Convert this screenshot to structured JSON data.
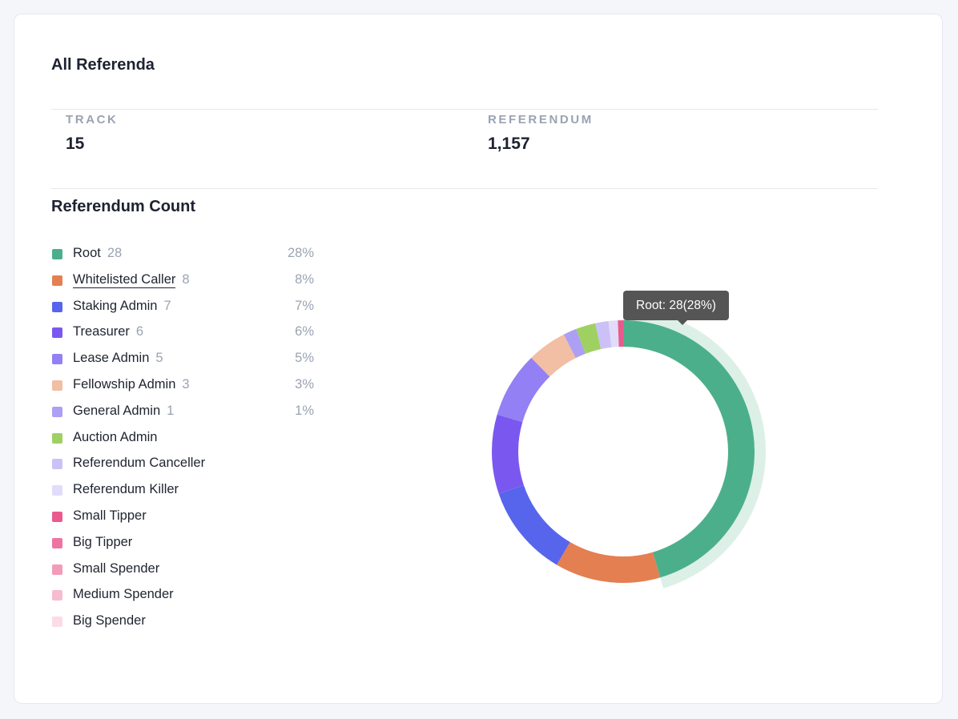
{
  "header": {
    "title": "All Referenda"
  },
  "stats": [
    {
      "label": "TRACK",
      "value": "15"
    },
    {
      "label": "REFERENDUM",
      "value": "1,157"
    }
  ],
  "section": {
    "title": "Referendum Count"
  },
  "legend": [
    {
      "name": "Root",
      "count": "28",
      "pct": "28%",
      "color": "#4caf8c"
    },
    {
      "name": "Whitelisted Caller",
      "count": "8",
      "pct": "8%",
      "color": "#e47f52"
    },
    {
      "name": "Staking Admin",
      "count": "7",
      "pct": "7%",
      "color": "#5765ec"
    },
    {
      "name": "Treasurer",
      "count": "6",
      "pct": "6%",
      "color": "#7a58f0"
    },
    {
      "name": "Lease Admin",
      "count": "5",
      "pct": "5%",
      "color": "#9380f4"
    },
    {
      "name": "Fellowship Admin",
      "count": "3",
      "pct": "3%",
      "color": "#f2bea4"
    },
    {
      "name": "General Admin",
      "count": "1",
      "pct": "1%",
      "color": "#ac9ff4"
    },
    {
      "name": "Auction Admin",
      "count": "",
      "pct": "",
      "color": "#9ed162"
    },
    {
      "name": "Referendum Canceller",
      "count": "",
      "pct": "",
      "color": "#cbc1f7"
    },
    {
      "name": "Referendum Killer",
      "count": "",
      "pct": "",
      "color": "#e1dcfa"
    },
    {
      "name": "Small Tipper",
      "count": "",
      "pct": "",
      "color": "#ea5a8d"
    },
    {
      "name": "Big Tipper",
      "count": "",
      "pct": "",
      "color": "#ee75a1"
    },
    {
      "name": "Small Spender",
      "count": "",
      "pct": "",
      "color": "#f39bba"
    },
    {
      "name": "Medium Spender",
      "count": "",
      "pct": "",
      "color": "#f7bcd0"
    },
    {
      "name": "Big Spender",
      "count": "",
      "pct": "",
      "color": "#fadbe6"
    }
  ],
  "tooltip": {
    "text": "Root: 28(28%)"
  },
  "chart_data": {
    "type": "pie",
    "variant": "donut",
    "categories": [
      "Root",
      "Whitelisted Caller",
      "Staking Admin",
      "Treasurer",
      "Lease Admin",
      "Fellowship Admin",
      "General Admin",
      "Auction Admin",
      "Referendum Canceller",
      "Referendum Killer",
      "Small Tipper"
    ],
    "values": [
      28,
      8,
      7,
      6,
      5,
      3,
      1,
      1.5,
      1,
      0.7,
      0.4
    ],
    "colors": [
      "#4caf8c",
      "#e47f52",
      "#5765ec",
      "#7a58f0",
      "#9380f4",
      "#f2bea4",
      "#ac9ff4",
      "#9ed162",
      "#cbc1f7",
      "#e1dcfa",
      "#ea5a8d"
    ],
    "highlighted": "Root",
    "highlight_color": "#dcf0e7"
  }
}
